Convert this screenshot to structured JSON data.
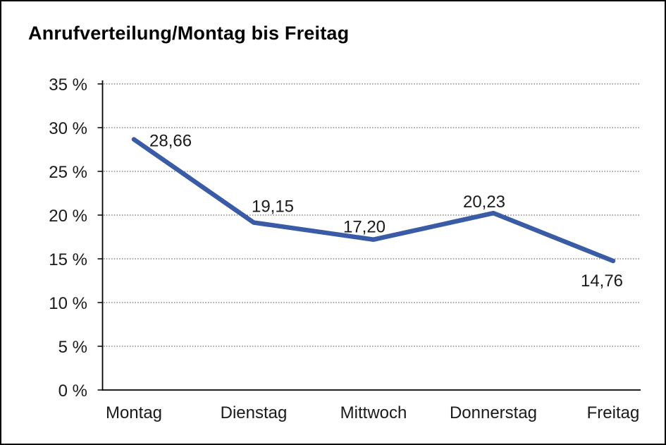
{
  "window": {
    "title": "Anrufverteilung/Montag bis Freitag"
  },
  "colors": {
    "line": "#3A5BA5",
    "grid": "#4A4A4A",
    "axis": "#000000",
    "text": "#1A1A1A",
    "background": "#FFFFFF",
    "frame_border": "#000000"
  },
  "chart_data": {
    "type": "line",
    "title": "Anrufverteilung/Montag bis Freitag",
    "categories": [
      "Montag",
      "Dienstag",
      "Mittwoch",
      "Donnerstag",
      "Freitag"
    ],
    "values": [
      28.66,
      19.15,
      17.2,
      20.23,
      14.76
    ],
    "point_labels": [
      "28,66",
      "19,15",
      "17,20",
      "20,23",
      "14,76"
    ],
    "y_ticks": [
      "35 %",
      "30 %",
      "25 %",
      "20 %",
      "15 %",
      "10 %",
      "5 %",
      "0 %"
    ],
    "y_tick_values": [
      35,
      30,
      25,
      20,
      15,
      10,
      5,
      0
    ],
    "ylim": [
      0,
      35
    ],
    "y_step": 5,
    "xlabel": "",
    "ylabel": "",
    "grid": "horizontal-dotted",
    "legend": "none",
    "series_name": "Anrufverteilung"
  }
}
